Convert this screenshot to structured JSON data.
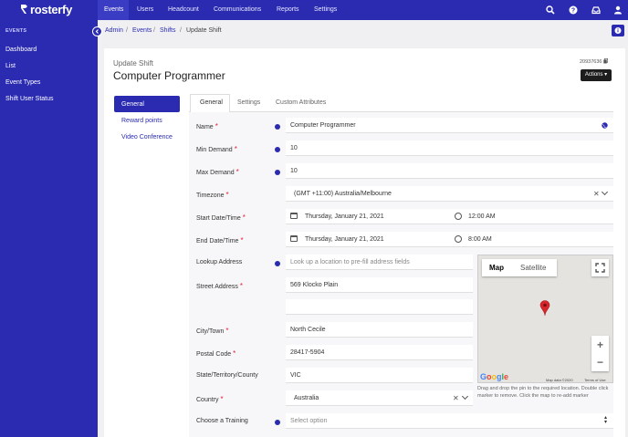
{
  "brand": {
    "name": "rosterfy"
  },
  "topnav": {
    "items": [
      "Events",
      "Users",
      "Headcount",
      "Communications",
      "Reports",
      "Settings"
    ],
    "active": "Events"
  },
  "sidebar": {
    "heading": "EVENTS",
    "items": [
      "Dashboard",
      "List",
      "Event Types",
      "Shift User Status"
    ]
  },
  "breadcrumb": {
    "items": [
      "Admin",
      "Events",
      "Shifts"
    ],
    "separator": "/",
    "current": "Update Shift"
  },
  "page": {
    "subtitle": "Update Shift",
    "title": "Computer Programmer",
    "record_id": "20937636",
    "actions_label": "Actions"
  },
  "submenu": {
    "items": [
      "General",
      "Reward points",
      "Video Conference"
    ],
    "active": "General"
  },
  "tabs": {
    "items": [
      "General",
      "Settings",
      "Custom Attributes"
    ],
    "active": "General"
  },
  "form": {
    "name": {
      "label": "Name",
      "value": "Computer Programmer"
    },
    "min_demand": {
      "label": "Min Demand",
      "value": "10"
    },
    "max_demand": {
      "label": "Max Demand",
      "value": "10"
    },
    "timezone": {
      "label": "Timezone",
      "value": "(GMT +11:00) Australia/Melbourne"
    },
    "start": {
      "label": "Start Date/Time",
      "date": "Thursday, January 21, 2021",
      "time": "12:00 AM"
    },
    "end": {
      "label": "End Date/Time",
      "date": "Thursday, January 21, 2021",
      "time": "8:00 AM"
    },
    "lookup": {
      "label": "Lookup Address",
      "placeholder": "Look up a location to pre-fill address fields"
    },
    "street": {
      "label": "Street Address",
      "value": "569 Klocko Plain",
      "value2": ""
    },
    "city": {
      "label": "City/Town",
      "value": "North Cecile"
    },
    "postal": {
      "label": "Postal Code",
      "value": "28417-5904"
    },
    "state": {
      "label": "State/Territory/County",
      "value": "VIC"
    },
    "country": {
      "label": "Country",
      "value": "Australia"
    },
    "training": {
      "label": "Choose a Training",
      "placeholder": "Select option"
    },
    "required_mark": "*"
  },
  "map": {
    "map_label": "Map",
    "satellite_label": "Satellite",
    "google": "Google",
    "map_data": "Map data ©2020",
    "terms": "Terms of Use",
    "zoom_in": "+",
    "zoom_out": "−",
    "help": "Drag and drop the pin to the required location. Double click marker to remove. Click the map to re-add marker"
  },
  "colors": {
    "brand": "#2a2bb0",
    "required": "#e2233b",
    "pin": "#d9262c"
  },
  "icons": [
    "search-icon",
    "help-icon",
    "inbox-icon",
    "user-icon",
    "info-icon",
    "calendar-icon",
    "clock-icon",
    "globe-icon",
    "copy-icon",
    "fullscreen-icon",
    "map-pin-icon"
  ]
}
